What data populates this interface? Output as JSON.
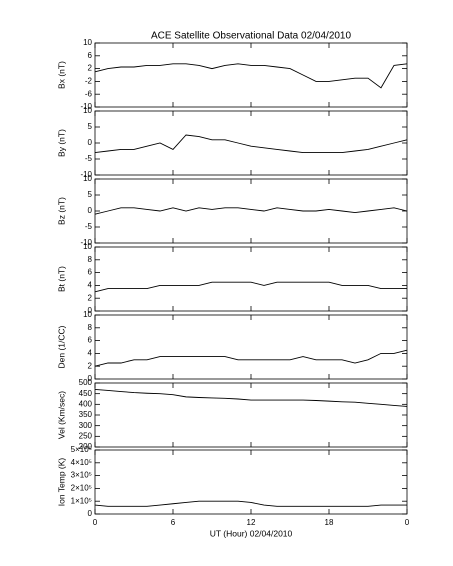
{
  "chart_data": [
    {
      "type": "line",
      "title": "ACE Satellite Observational Data   02/04/2010",
      "ylabel": "Bx (nT)",
      "color": "#000000",
      "xlim": [
        0,
        24
      ],
      "xticks": [
        0,
        6,
        12,
        18,
        {
          "value": 24,
          "label": "0"
        }
      ],
      "ylim": [
        -10,
        10
      ],
      "yticks": [
        -10,
        -6,
        -2,
        2,
        6,
        10
      ],
      "x": [
        0,
        1,
        2,
        3,
        4,
        5,
        6,
        7,
        8,
        9,
        10,
        11,
        12,
        13,
        14,
        15,
        16,
        17,
        18,
        19,
        20,
        21,
        22,
        23,
        24
      ],
      "values": [
        1,
        2,
        2.5,
        2.5,
        3,
        3,
        3.5,
        3.5,
        3,
        2,
        3,
        3.5,
        3,
        3,
        2.5,
        2,
        0,
        -2,
        -2,
        -1.5,
        -1,
        -1,
        -4,
        3,
        3.5
      ]
    },
    {
      "type": "line",
      "ylabel": "By (nT)",
      "color": "#000000",
      "xlim": [
        0,
        24
      ],
      "xticks": [
        0,
        6,
        12,
        18,
        {
          "value": 24,
          "label": "0"
        }
      ],
      "ylim": [
        -10,
        10
      ],
      "yticks": [
        -10,
        -5,
        0,
        5,
        10
      ],
      "x": [
        0,
        1,
        2,
        3,
        4,
        5,
        6,
        7,
        8,
        9,
        10,
        11,
        12,
        13,
        14,
        15,
        16,
        17,
        18,
        19,
        20,
        21,
        22,
        23,
        24
      ],
      "values": [
        -3,
        -2.5,
        -2,
        -2,
        -1,
        0,
        -2,
        2.5,
        2,
        1,
        1,
        0,
        -1,
        -1.5,
        -2,
        -2.5,
        -3,
        -3,
        -3,
        -3,
        -2.5,
        -2,
        -1,
        0,
        1
      ]
    },
    {
      "type": "line",
      "ylabel": "Bz (nT)",
      "color": "#000000",
      "xlim": [
        0,
        24
      ],
      "xticks": [
        0,
        6,
        12,
        18,
        {
          "value": 24,
          "label": "0"
        }
      ],
      "ylim": [
        -10,
        10
      ],
      "yticks": [
        -10,
        -5,
        0,
        5,
        10
      ],
      "x": [
        0,
        1,
        2,
        3,
        4,
        5,
        6,
        7,
        8,
        9,
        10,
        11,
        12,
        13,
        14,
        15,
        16,
        17,
        18,
        19,
        20,
        21,
        22,
        23,
        24
      ],
      "values": [
        -1,
        0,
        1,
        1,
        0.5,
        0,
        1,
        0,
        1,
        0.5,
        1,
        1,
        0.5,
        0,
        1,
        0.5,
        0,
        0,
        0.5,
        0,
        -0.5,
        0,
        0.5,
        1,
        0
      ]
    },
    {
      "type": "line",
      "ylabel": "Bt (nT)",
      "color": "#000000",
      "xlim": [
        0,
        24
      ],
      "xticks": [
        0,
        6,
        12,
        18,
        {
          "value": 24,
          "label": "0"
        }
      ],
      "ylim": [
        0,
        10
      ],
      "yticks": [
        0,
        2,
        4,
        6,
        8,
        10
      ],
      "x": [
        0,
        1,
        2,
        3,
        4,
        5,
        6,
        7,
        8,
        9,
        10,
        11,
        12,
        13,
        14,
        15,
        16,
        17,
        18,
        19,
        20,
        21,
        22,
        23,
        24
      ],
      "values": [
        3,
        3.5,
        3.5,
        3.5,
        3.5,
        4,
        4,
        4,
        4,
        4.5,
        4.5,
        4.5,
        4.5,
        4,
        4.5,
        4.5,
        4.5,
        4.5,
        4.5,
        4,
        4,
        4,
        3.5,
        3.5,
        3.5
      ]
    },
    {
      "type": "line",
      "ylabel": "Den (1/CC)",
      "color": "#000000",
      "xlim": [
        0,
        24
      ],
      "xticks": [
        0,
        6,
        12,
        18,
        {
          "value": 24,
          "label": "0"
        }
      ],
      "ylim": [
        0,
        10
      ],
      "yticks": [
        0,
        2,
        4,
        6,
        8,
        10
      ],
      "x": [
        0,
        1,
        2,
        3,
        4,
        5,
        6,
        7,
        8,
        9,
        10,
        11,
        12,
        13,
        14,
        15,
        16,
        17,
        18,
        19,
        20,
        21,
        22,
        23,
        24
      ],
      "values": [
        2,
        2.5,
        2.5,
        3,
        3,
        3.5,
        3.5,
        3.5,
        3.5,
        3.5,
        3.5,
        3,
        3,
        3,
        3,
        3,
        3.5,
        3,
        3,
        3,
        2.5,
        3,
        4,
        4,
        4.5
      ]
    },
    {
      "type": "line",
      "ylabel": "Vel (Km/sec)",
      "color": "#000000",
      "xlim": [
        0,
        24
      ],
      "xticks": [
        0,
        6,
        12,
        18,
        {
          "value": 24,
          "label": "0"
        }
      ],
      "ylim": [
        200,
        500
      ],
      "yticks": [
        200,
        250,
        300,
        350,
        400,
        450,
        500
      ],
      "x": [
        0,
        1,
        2,
        3,
        4,
        5,
        6,
        7,
        8,
        9,
        10,
        11,
        12,
        13,
        14,
        15,
        16,
        17,
        18,
        19,
        20,
        21,
        22,
        23,
        24
      ],
      "values": [
        470,
        465,
        460,
        455,
        452,
        450,
        445,
        435,
        432,
        430,
        428,
        425,
        420,
        420,
        420,
        420,
        420,
        418,
        415,
        412,
        410,
        405,
        400,
        395,
        390
      ]
    },
    {
      "type": "line",
      "ylabel": "Ion Temp (K)",
      "xlabel": "UT (Hour)   02/04/2010",
      "color": "#000000",
      "xlim": [
        0,
        24
      ],
      "xticks": [
        0,
        6,
        12,
        18,
        {
          "value": 24,
          "label": "0"
        }
      ],
      "ylim": [
        0,
        500000
      ],
      "yticks": [
        0,
        {
          "value": 100000,
          "label": "1×10⁵"
        },
        {
          "value": 200000,
          "label": "2×10⁵"
        },
        {
          "value": 300000,
          "label": "3×10⁵"
        },
        {
          "value": 400000,
          "label": "4×10⁵"
        },
        {
          "value": 500000,
          "label": "5×10⁵"
        }
      ],
      "x": [
        0,
        1,
        2,
        3,
        4,
        5,
        6,
        7,
        8,
        9,
        10,
        11,
        12,
        13,
        14,
        15,
        16,
        17,
        18,
        19,
        20,
        21,
        22,
        23,
        24
      ],
      "values": [
        70000,
        60000,
        60000,
        60000,
        60000,
        70000,
        80000,
        90000,
        100000,
        100000,
        100000,
        100000,
        90000,
        70000,
        60000,
        60000,
        60000,
        60000,
        60000,
        60000,
        60000,
        60000,
        70000,
        70000,
        70000
      ]
    }
  ]
}
